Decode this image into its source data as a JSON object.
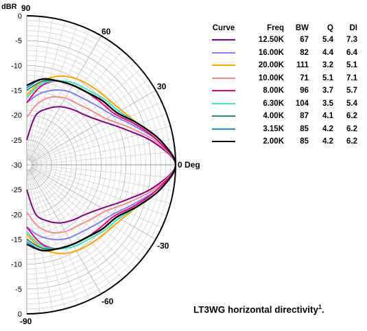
{
  "chart_data": {
    "type": "polar",
    "angle_unit": "deg",
    "angle_range": [
      -90,
      90
    ],
    "angle_labels": [
      "90",
      "60",
      "30",
      "0 Deg",
      "-30",
      "-60",
      "-90"
    ],
    "radial_unit_label": "dBR",
    "radial_range": [
      -30,
      0
    ],
    "radial_tick_labels": [
      "0",
      "-5",
      "-10",
      "-15",
      "-20",
      "-25",
      "-30",
      "-25",
      "-20",
      "-15",
      "-10",
      "-5",
      "0"
    ],
    "legend_headers": {
      "curve": "Curve",
      "freq": "Freq",
      "bw": "BW",
      "q": "Q",
      "di": "DI"
    },
    "series": [
      {
        "freq": "12.50K",
        "bw": "67",
        "q": "5.4",
        "di": "7.3",
        "color": "#800080",
        "angles": [
          -90,
          -80,
          -70,
          -60,
          -50,
          -40,
          -30,
          -20,
          -10,
          0,
          10,
          20,
          30,
          40,
          50,
          60,
          70,
          80,
          90
        ],
        "values": [
          -25,
          -20,
          -18,
          -16.5,
          -15.5,
          -14.5,
          -12.5,
          -9,
          -4,
          0,
          -4,
          -9,
          -12.5,
          -14.5,
          -15.5,
          -16.5,
          -18,
          -20,
          -25
        ]
      },
      {
        "freq": "16.00K",
        "bw": "82",
        "q": "4.4",
        "di": "6.4",
        "color": "#8080ff",
        "angles": [
          -90,
          -80,
          -70,
          -60,
          -50,
          -40,
          -30,
          -20,
          -10,
          0,
          10,
          20,
          30,
          40,
          50,
          60,
          70,
          80,
          90
        ],
        "values": [
          -17.5,
          -15.5,
          -14,
          -13,
          -12.5,
          -11.5,
          -10,
          -7,
          -3,
          0,
          -3,
          -7,
          -10,
          -11.5,
          -12.5,
          -13,
          -14,
          -15.5,
          -17.5
        ]
      },
      {
        "freq": "20.00K",
        "bw": "111",
        "q": "3.2",
        "di": "5.1",
        "color": "#ffa500",
        "angles": [
          -90,
          -80,
          -70,
          -60,
          -50,
          -40,
          -30,
          -20,
          -10,
          0,
          10,
          20,
          30,
          40,
          50,
          60,
          70,
          80,
          90
        ],
        "values": [
          -16,
          -13,
          -11,
          -10,
          -9.5,
          -9,
          -8,
          -6,
          -2.5,
          0,
          -2.5,
          -6,
          -8,
          -9,
          -9.5,
          -10,
          -11,
          -13,
          -16
        ]
      },
      {
        "freq": "10.00K",
        "bw": "71",
        "q": "5.1",
        "di": "7.1",
        "color": "#ff8c8c",
        "angles": [
          -90,
          -80,
          -70,
          -60,
          -50,
          -40,
          -30,
          -20,
          -10,
          0,
          10,
          20,
          30,
          40,
          50,
          60,
          70,
          80,
          90
        ],
        "values": [
          -20.5,
          -17.5,
          -15.5,
          -14.5,
          -14,
          -13,
          -11.5,
          -8,
          -3.5,
          0,
          -3.5,
          -8,
          -11.5,
          -13,
          -14,
          -14.5,
          -15.5,
          -17.5,
          -20.5
        ]
      },
      {
        "freq": "8.00K",
        "bw": "96",
        "q": "3.7",
        "di": "5.7",
        "color": "#e6007e",
        "angles": [
          -90,
          -80,
          -70,
          -60,
          -50,
          -40,
          -30,
          -20,
          -10,
          0,
          10,
          20,
          30,
          40,
          50,
          60,
          70,
          80,
          90
        ],
        "values": [
          -17.5,
          -14,
          -12,
          -11.5,
          -11,
          -10.5,
          -9.5,
          -6.5,
          -3,
          0,
          -3,
          -6.5,
          -9.5,
          -10.5,
          -11,
          -11.5,
          -12,
          -14,
          -17.5
        ]
      },
      {
        "freq": "6.30K",
        "bw": "104",
        "q": "3.5",
        "di": "5.4",
        "color": "#40e0c0",
        "angles": [
          -90,
          -80,
          -70,
          -60,
          -50,
          -40,
          -30,
          -20,
          -10,
          0,
          10,
          20,
          30,
          40,
          50,
          60,
          70,
          80,
          90
        ],
        "values": [
          -16.5,
          -13.5,
          -12,
          -11,
          -10.5,
          -9.5,
          -8.5,
          -6,
          -2.5,
          0,
          -2.5,
          -6,
          -8.5,
          -9.5,
          -10.5,
          -11,
          -12,
          -13.5,
          -16.5
        ]
      },
      {
        "freq": "4.00K",
        "bw": "87",
        "q": "4.1",
        "di": "6.2",
        "color": "#2e8b7a",
        "angles": [
          -90,
          -80,
          -70,
          -60,
          -50,
          -40,
          -30,
          -20,
          -10,
          0,
          10,
          20,
          30,
          40,
          50,
          60,
          70,
          80,
          90
        ],
        "values": [
          -15,
          -13,
          -12,
          -11.5,
          -11,
          -10,
          -9,
          -6,
          -2.5,
          0,
          -2.5,
          -6,
          -9,
          -10,
          -11,
          -11.5,
          -12,
          -13,
          -15
        ]
      },
      {
        "freq": "3.15K",
        "bw": "85",
        "q": "4.2",
        "di": "6.2",
        "color": "#1e8fd0",
        "angles": [
          -90,
          -80,
          -70,
          -60,
          -50,
          -40,
          -30,
          -20,
          -10,
          0,
          10,
          20,
          30,
          40,
          50,
          60,
          70,
          80,
          90
        ],
        "values": [
          -14.5,
          -12.5,
          -12,
          -11.5,
          -11,
          -10,
          -9,
          -6,
          -2.5,
          0,
          -2.5,
          -6,
          -9,
          -10,
          -11,
          -11.5,
          -12,
          -12.5,
          -14.5
        ]
      },
      {
        "freq": "2.00K",
        "bw": "85",
        "q": "4.2",
        "di": "6.2",
        "color": "#000000",
        "angles": [
          -90,
          -80,
          -70,
          -60,
          -50,
          -40,
          -30,
          -20,
          -10,
          0,
          10,
          20,
          30,
          40,
          50,
          60,
          70,
          80,
          90
        ],
        "values": [
          -14,
          -12.5,
          -12,
          -11.5,
          -11,
          -10,
          -9,
          -6,
          -2.5,
          0,
          -2.5,
          -6,
          -9,
          -10,
          -11,
          -11.5,
          -12,
          -12.5,
          -14
        ]
      }
    ]
  },
  "caption": {
    "text": "LT3WG horizontal directivity",
    "sup": "1",
    "end": "."
  }
}
